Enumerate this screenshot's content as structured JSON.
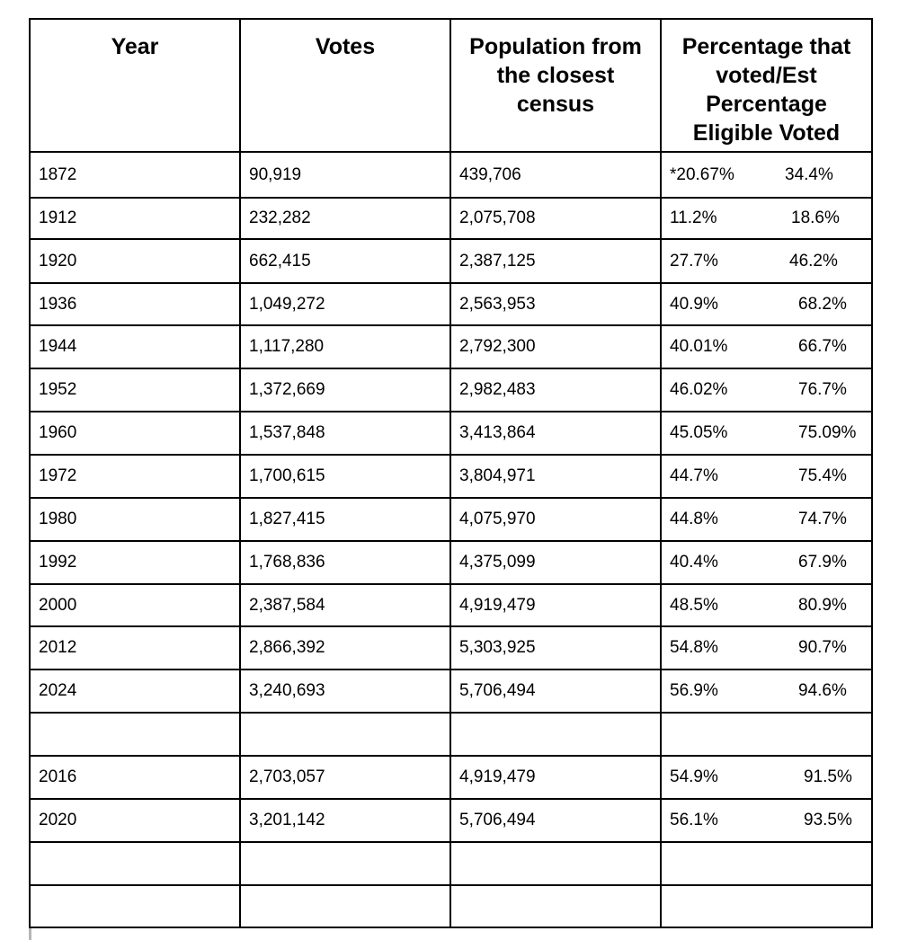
{
  "headers": {
    "year": "Year",
    "votes": "Votes",
    "population": "Population from the closest census",
    "percentage": "Percentage that voted/Est Percentage Eligible Voted"
  },
  "rows": [
    {
      "year": "1872",
      "votes": "90,919",
      "population": "439,706",
      "pct_voted": "*20.67%",
      "pct_eligible": "34.4%"
    },
    {
      "year": "1912",
      "votes": "232,282",
      "population": "2,075,708",
      "pct_voted": "11.2%",
      "pct_eligible": "18.6%"
    },
    {
      "year": "1920",
      "votes": "662,415",
      "population": "2,387,125",
      "pct_voted": "27.7%",
      "pct_eligible": "46.2%"
    },
    {
      "year": "1936",
      "votes": "1,049,272",
      "population": "2,563,953",
      "pct_voted": "40.9%",
      "pct_eligible": "68.2%"
    },
    {
      "year": "1944",
      "votes": "1,117,280",
      "population": "2,792,300",
      "pct_voted": "40.01%",
      "pct_eligible": "66.7%"
    },
    {
      "year": "1952",
      "votes": "1,372,669",
      "population": "2,982,483",
      "pct_voted": "46.02%",
      "pct_eligible": "76.7%"
    },
    {
      "year": "1960",
      "votes": "1,537,848",
      "population": "3,413,864",
      "pct_voted": "45.05%",
      "pct_eligible": "75.09%"
    },
    {
      "year": "1972",
      "votes": "1,700,615",
      "population": "3,804,971",
      "pct_voted": "44.7%",
      "pct_eligible": "75.4%"
    },
    {
      "year": "1980",
      "votes": "1,827,415",
      "population": "4,075,970",
      "pct_voted": "44.8%",
      "pct_eligible": "74.7%"
    },
    {
      "year": "1992",
      "votes": "1,768,836",
      "population": "4,375,099",
      "pct_voted": "40.4%",
      "pct_eligible": "67.9%"
    },
    {
      "year": "2000",
      "votes": "2,387,584",
      "population": "4,919,479",
      "pct_voted": "48.5%",
      "pct_eligible": "80.9%"
    },
    {
      "year": "2012",
      "votes": "2,866,392",
      "population": "5,303,925",
      "pct_voted": "54.8%",
      "pct_eligible": "90.7%"
    },
    {
      "year": "2024",
      "votes": "3,240,693",
      "population": "5,706,494",
      "pct_voted": "56.9%",
      "pct_eligible": "94.6%"
    },
    {
      "year": "",
      "votes": "",
      "population": "",
      "pct_voted": "",
      "pct_eligible": ""
    },
    {
      "year": "2016",
      "votes": "2,703,057",
      "population": "4,919,479",
      "pct_voted": "54.9%",
      "pct_eligible": "91.5%"
    },
    {
      "year": "2020",
      "votes": "3,201,142",
      "population": "5,706,494",
      "pct_voted": "56.1%",
      "pct_eligible": "93.5%"
    },
    {
      "year": "",
      "votes": "",
      "population": "",
      "pct_voted": "",
      "pct_eligible": ""
    },
    {
      "year": "",
      "votes": "",
      "population": "",
      "pct_voted": "",
      "pct_eligible": ""
    }
  ]
}
